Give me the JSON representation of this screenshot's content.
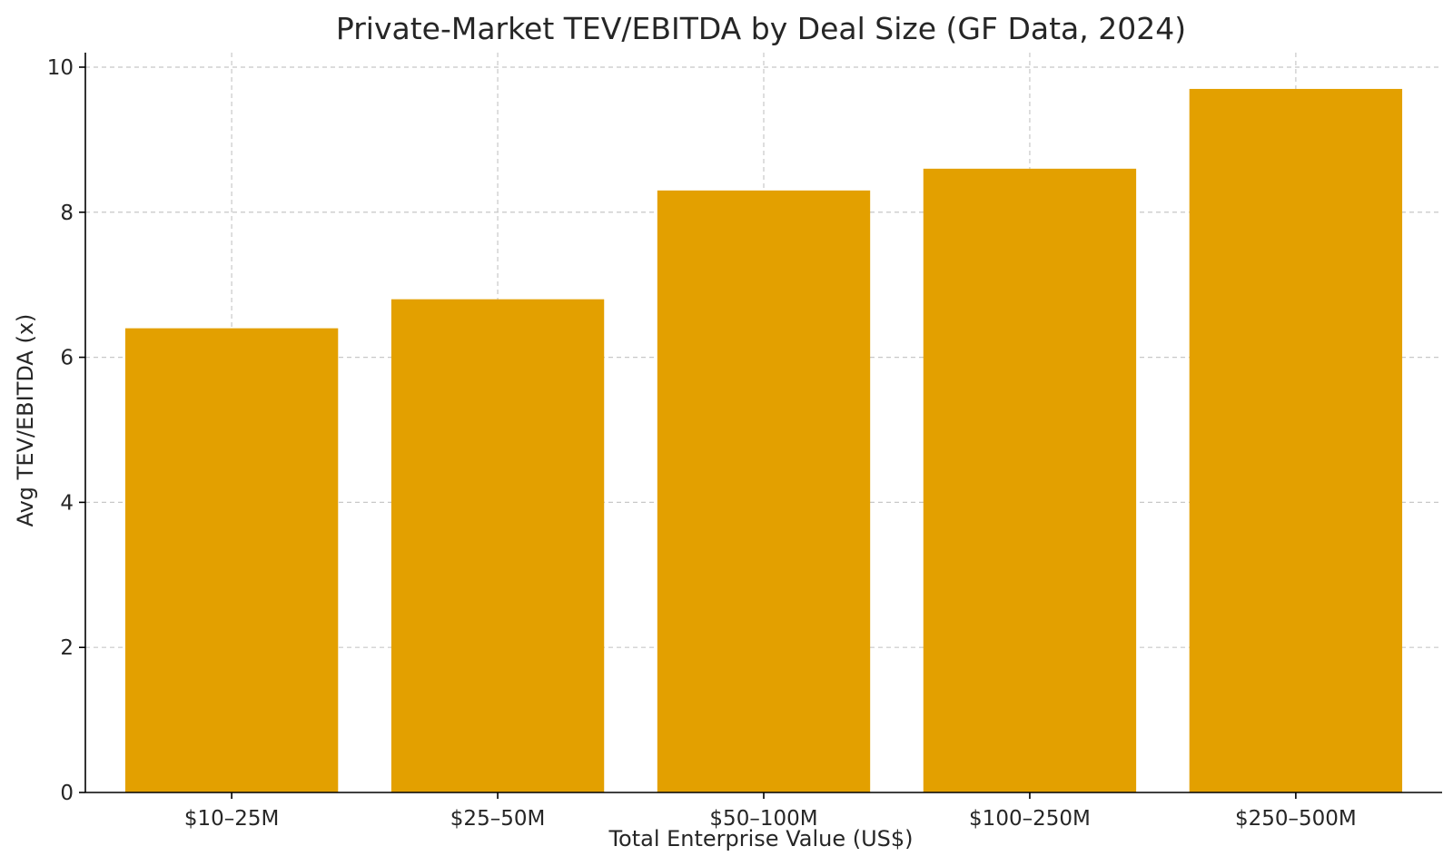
{
  "chart_data": {
    "type": "bar",
    "title": "Private-Market TEV/EBITDA by Deal Size (GF Data, 2024)",
    "xlabel": "Total Enterprise Value (US$)",
    "ylabel": "Avg TEV/EBITDA (x)",
    "categories": [
      "$10–25M",
      "$25–50M",
      "$50–100M",
      "$100–250M",
      "$250–500M"
    ],
    "values": [
      6.4,
      6.8,
      8.3,
      8.6,
      9.7
    ],
    "ylim": [
      0,
      10.2
    ],
    "yticks": [
      0,
      2,
      4,
      6,
      8,
      10
    ],
    "grid": true,
    "bar_color": "#E3A000"
  }
}
